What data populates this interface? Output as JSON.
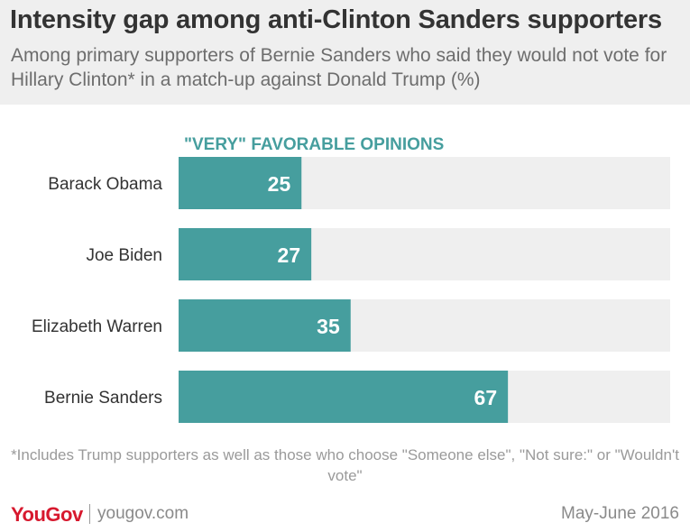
{
  "header": {
    "title": "Intensity gap among anti-Clinton Sanders supporters",
    "subtitle": "Among primary supporters of Bernie Sanders who said they would not vote for Hillary Clinton* in a match-up against Donald Trump (%)"
  },
  "chart_data": {
    "type": "bar",
    "orientation": "horizontal",
    "series_label": "\"VERY\" FAVORABLE OPINIONS",
    "categories": [
      "Barack Obama",
      "Joe Biden",
      "Elizabeth Warren",
      "Bernie Sanders"
    ],
    "values": [
      25,
      27,
      35,
      67
    ],
    "xlim": [
      0,
      100
    ],
    "grid": false,
    "bar_color": "#469e9e",
    "track_color": "#efefef"
  },
  "footnote": "*Includes Trump supporters as well as those who choose \"Someone else\", \"Not sure:\" or \"Wouldn't vote\"",
  "footer": {
    "logo": "YouGov",
    "site": "yougov.com",
    "date": "May-June 2016"
  },
  "colors": {
    "accent": "#469e9e",
    "brand": "#d7192e"
  }
}
